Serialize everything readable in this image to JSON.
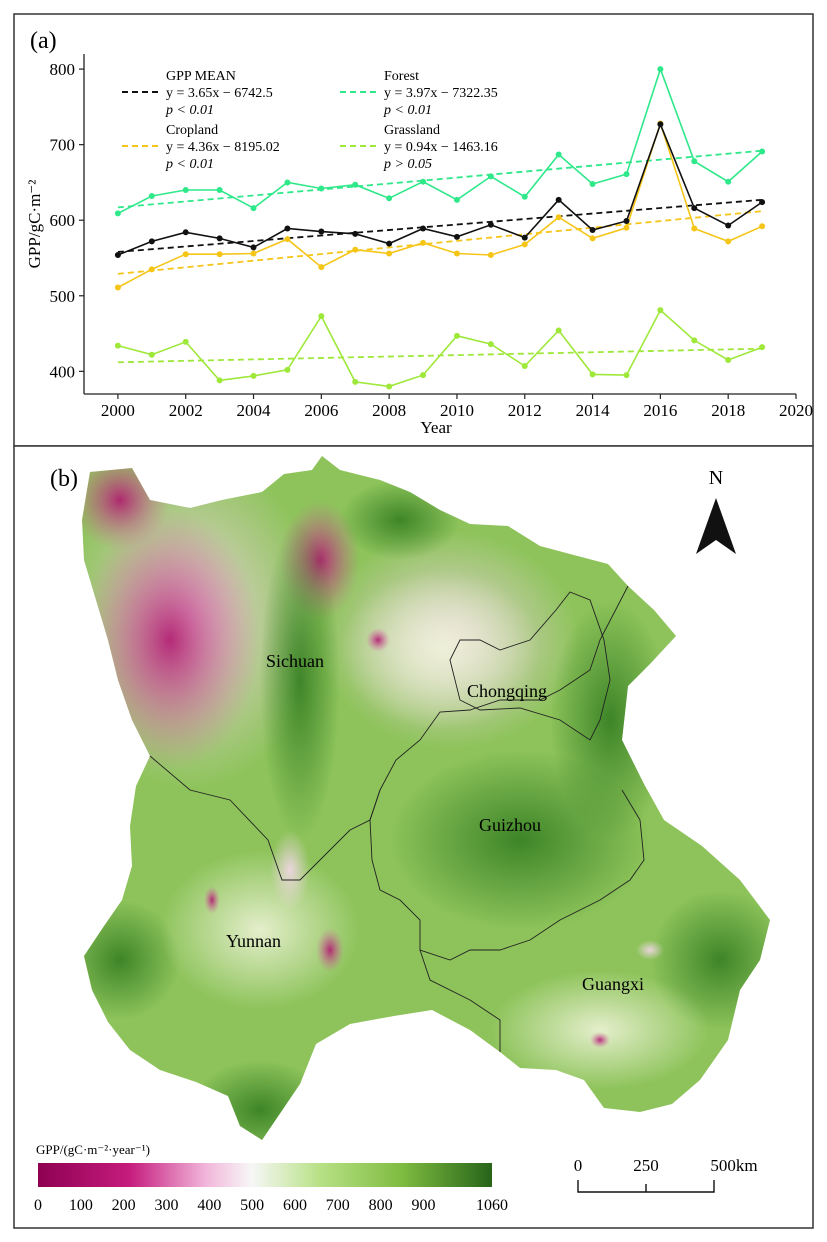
{
  "panel_a": {
    "label": "(a)"
  },
  "panel_b": {
    "label": "(b)"
  },
  "colors": {
    "mean": "#111111",
    "forest": "#2ee88a",
    "cropland": "#f5c518",
    "grassland": "#9ee83a",
    "cb_low": "#8e0152",
    "cb_mid": "#f7f7f7",
    "cb_high": "#276419"
  },
  "chart_data": {
    "type": "line",
    "xlabel": "Year",
    "ylabel": "GPP/gC·m⁻²",
    "xlim": [
      1999,
      2020
    ],
    "ylim": [
      370,
      820
    ],
    "xticks": [
      2000,
      2002,
      2004,
      2006,
      2008,
      2010,
      2012,
      2014,
      2016,
      2018,
      2020
    ],
    "yticks": [
      400,
      500,
      600,
      700,
      800
    ],
    "x": [
      2000,
      2001,
      2002,
      2003,
      2004,
      2005,
      2006,
      2007,
      2008,
      2009,
      2010,
      2011,
      2012,
      2013,
      2014,
      2015,
      2016,
      2017,
      2018,
      2019
    ],
    "series": [
      {
        "name": "GPP MEAN",
        "color_key": "mean",
        "values": [
          554,
          572,
          584,
          576,
          564,
          589,
          585,
          582,
          569,
          589,
          578,
          594,
          577,
          627,
          587,
          599,
          727,
          616,
          593,
          624
        ],
        "trend_label": "y = 3.65x − 6742.5",
        "p_label": "p < 0.01",
        "trend": [
          558,
          627
        ]
      },
      {
        "name": "Forest",
        "color_key": "forest",
        "values": [
          609,
          632,
          640,
          640,
          616,
          650,
          642,
          647,
          629,
          651,
          627,
          658,
          631,
          687,
          648,
          661,
          800,
          678,
          651,
          691
        ],
        "trend_label": "y = 3.97x − 7322.35",
        "p_label": "p < 0.01",
        "trend": [
          617,
          692
        ]
      },
      {
        "name": "Cropland",
        "color_key": "cropland",
        "values": [
          511,
          535,
          555,
          555,
          556,
          575,
          538,
          561,
          556,
          570,
          556,
          554,
          568,
          604,
          576,
          590,
          728,
          589,
          572,
          592
        ],
        "trend_label": "y = 4.36x − 8195.02",
        "p_label": "p < 0.01",
        "trend": [
          529,
          612
        ]
      },
      {
        "name": "Grassland",
        "color_key": "grassland",
        "values": [
          434,
          422,
          439,
          388,
          394,
          402,
          473,
          386,
          380,
          395,
          447,
          436,
          407,
          454,
          396,
          395,
          481,
          441,
          415,
          432
        ],
        "trend_label": "y = 0.94x − 1463.16",
        "p_label": "p > 0.05",
        "trend": [
          412,
          430
        ]
      }
    ]
  },
  "map": {
    "north_label": "N",
    "provinces": [
      "Sichuan",
      "Chongqing",
      "Guizhou",
      "Yunnan",
      "Guangxi"
    ],
    "colorbar_title": "GPP/(gC·m⁻²·year⁻¹)",
    "colorbar_ticks": [
      "0",
      "100",
      "200",
      "300",
      "400",
      "500",
      "600",
      "700",
      "800",
      "900",
      "1060"
    ],
    "scale_labels": [
      "0",
      "250",
      "500km"
    ]
  }
}
